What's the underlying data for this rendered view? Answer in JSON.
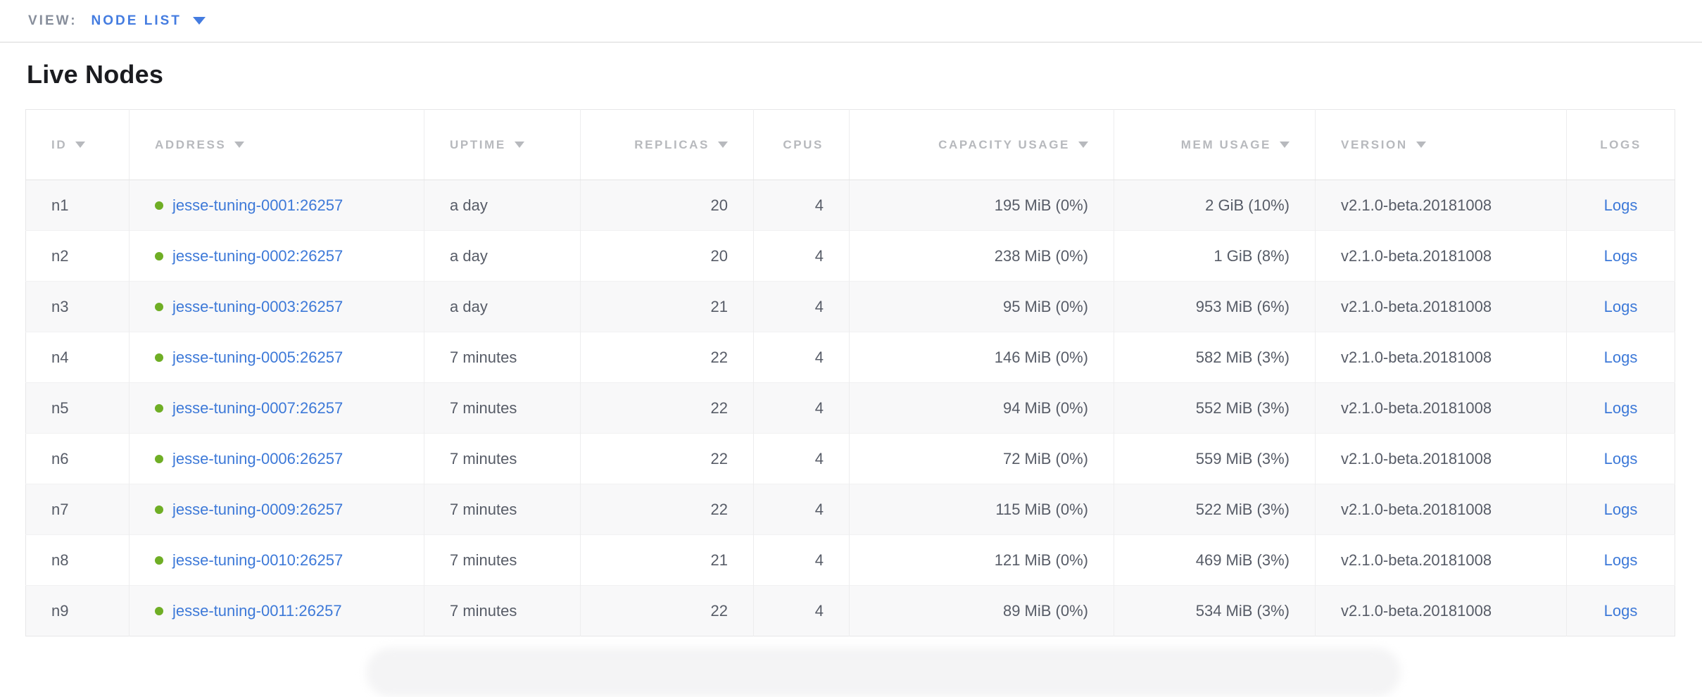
{
  "view_bar": {
    "label": "VIEW:",
    "selected": "NODE LIST"
  },
  "page": {
    "title": "Live Nodes"
  },
  "table": {
    "columns": [
      {
        "field": "id",
        "label": "ID",
        "sortable": true,
        "align": "left",
        "type": "text"
      },
      {
        "field": "address",
        "label": "ADDRESS",
        "sortable": true,
        "align": "left",
        "type": "link_with_status_dot"
      },
      {
        "field": "uptime",
        "label": "UPTIME",
        "sortable": true,
        "align": "left",
        "type": "text"
      },
      {
        "field": "replicas",
        "label": "REPLICAS",
        "sortable": true,
        "align": "right",
        "type": "text"
      },
      {
        "field": "cpus",
        "label": "CPUS",
        "sortable": false,
        "align": "right",
        "type": "text"
      },
      {
        "field": "capacity",
        "label": "CAPACITY USAGE",
        "sortable": true,
        "align": "right",
        "type": "text"
      },
      {
        "field": "mem",
        "label": "MEM USAGE",
        "sortable": true,
        "align": "right",
        "type": "text"
      },
      {
        "field": "version",
        "label": "VERSION",
        "sortable": true,
        "align": "left",
        "type": "text"
      },
      {
        "field": "logs",
        "label": "LOGS",
        "sortable": false,
        "align": "center",
        "type": "link"
      }
    ],
    "rows": [
      {
        "id": "n1",
        "address": "jesse-tuning-0001:26257",
        "uptime": "a day",
        "replicas": "20",
        "cpus": "4",
        "capacity": "195 MiB (0%)",
        "mem": "2 GiB (10%)",
        "version": "v2.1.0-beta.20181008",
        "logs": "Logs"
      },
      {
        "id": "n2",
        "address": "jesse-tuning-0002:26257",
        "uptime": "a day",
        "replicas": "20",
        "cpus": "4",
        "capacity": "238 MiB (0%)",
        "mem": "1 GiB (8%)",
        "version": "v2.1.0-beta.20181008",
        "logs": "Logs"
      },
      {
        "id": "n3",
        "address": "jesse-tuning-0003:26257",
        "uptime": "a day",
        "replicas": "21",
        "cpus": "4",
        "capacity": "95 MiB (0%)",
        "mem": "953 MiB (6%)",
        "version": "v2.1.0-beta.20181008",
        "logs": "Logs"
      },
      {
        "id": "n4",
        "address": "jesse-tuning-0005:26257",
        "uptime": "7 minutes",
        "replicas": "22",
        "cpus": "4",
        "capacity": "146 MiB (0%)",
        "mem": "582 MiB (3%)",
        "version": "v2.1.0-beta.20181008",
        "logs": "Logs"
      },
      {
        "id": "n5",
        "address": "jesse-tuning-0007:26257",
        "uptime": "7 minutes",
        "replicas": "22",
        "cpus": "4",
        "capacity": "94 MiB (0%)",
        "mem": "552 MiB (3%)",
        "version": "v2.1.0-beta.20181008",
        "logs": "Logs"
      },
      {
        "id": "n6",
        "address": "jesse-tuning-0006:26257",
        "uptime": "7 minutes",
        "replicas": "22",
        "cpus": "4",
        "capacity": "72 MiB (0%)",
        "mem": "559 MiB (3%)",
        "version": "v2.1.0-beta.20181008",
        "logs": "Logs"
      },
      {
        "id": "n7",
        "address": "jesse-tuning-0009:26257",
        "uptime": "7 minutes",
        "replicas": "22",
        "cpus": "4",
        "capacity": "115 MiB (0%)",
        "mem": "522 MiB (3%)",
        "version": "v2.1.0-beta.20181008",
        "logs": "Logs"
      },
      {
        "id": "n8",
        "address": "jesse-tuning-0010:26257",
        "uptime": "7 minutes",
        "replicas": "21",
        "cpus": "4",
        "capacity": "121 MiB (0%)",
        "mem": "469 MiB (3%)",
        "version": "v2.1.0-beta.20181008",
        "logs": "Logs"
      },
      {
        "id": "n9",
        "address": "jesse-tuning-0011:26257",
        "uptime": "7 minutes",
        "replicas": "22",
        "cpus": "4",
        "capacity": "89 MiB (0%)",
        "mem": "534 MiB (3%)",
        "version": "v2.1.0-beta.20181008",
        "logs": "Logs"
      }
    ]
  },
  "icons": {
    "view_dropdown_caret": "chevron-down-icon",
    "sort_indicator": "sort-desc-triangle-icon",
    "node_status": "status-dot-icon"
  },
  "colors": {
    "link_blue": "#3d79d8",
    "dropdown_blue": "#447ce0",
    "status_green": "#6fae25",
    "header_gray": "#b7b9bd",
    "cell_text": "#575c67",
    "alt_row_bg": "#f8f8f9"
  }
}
